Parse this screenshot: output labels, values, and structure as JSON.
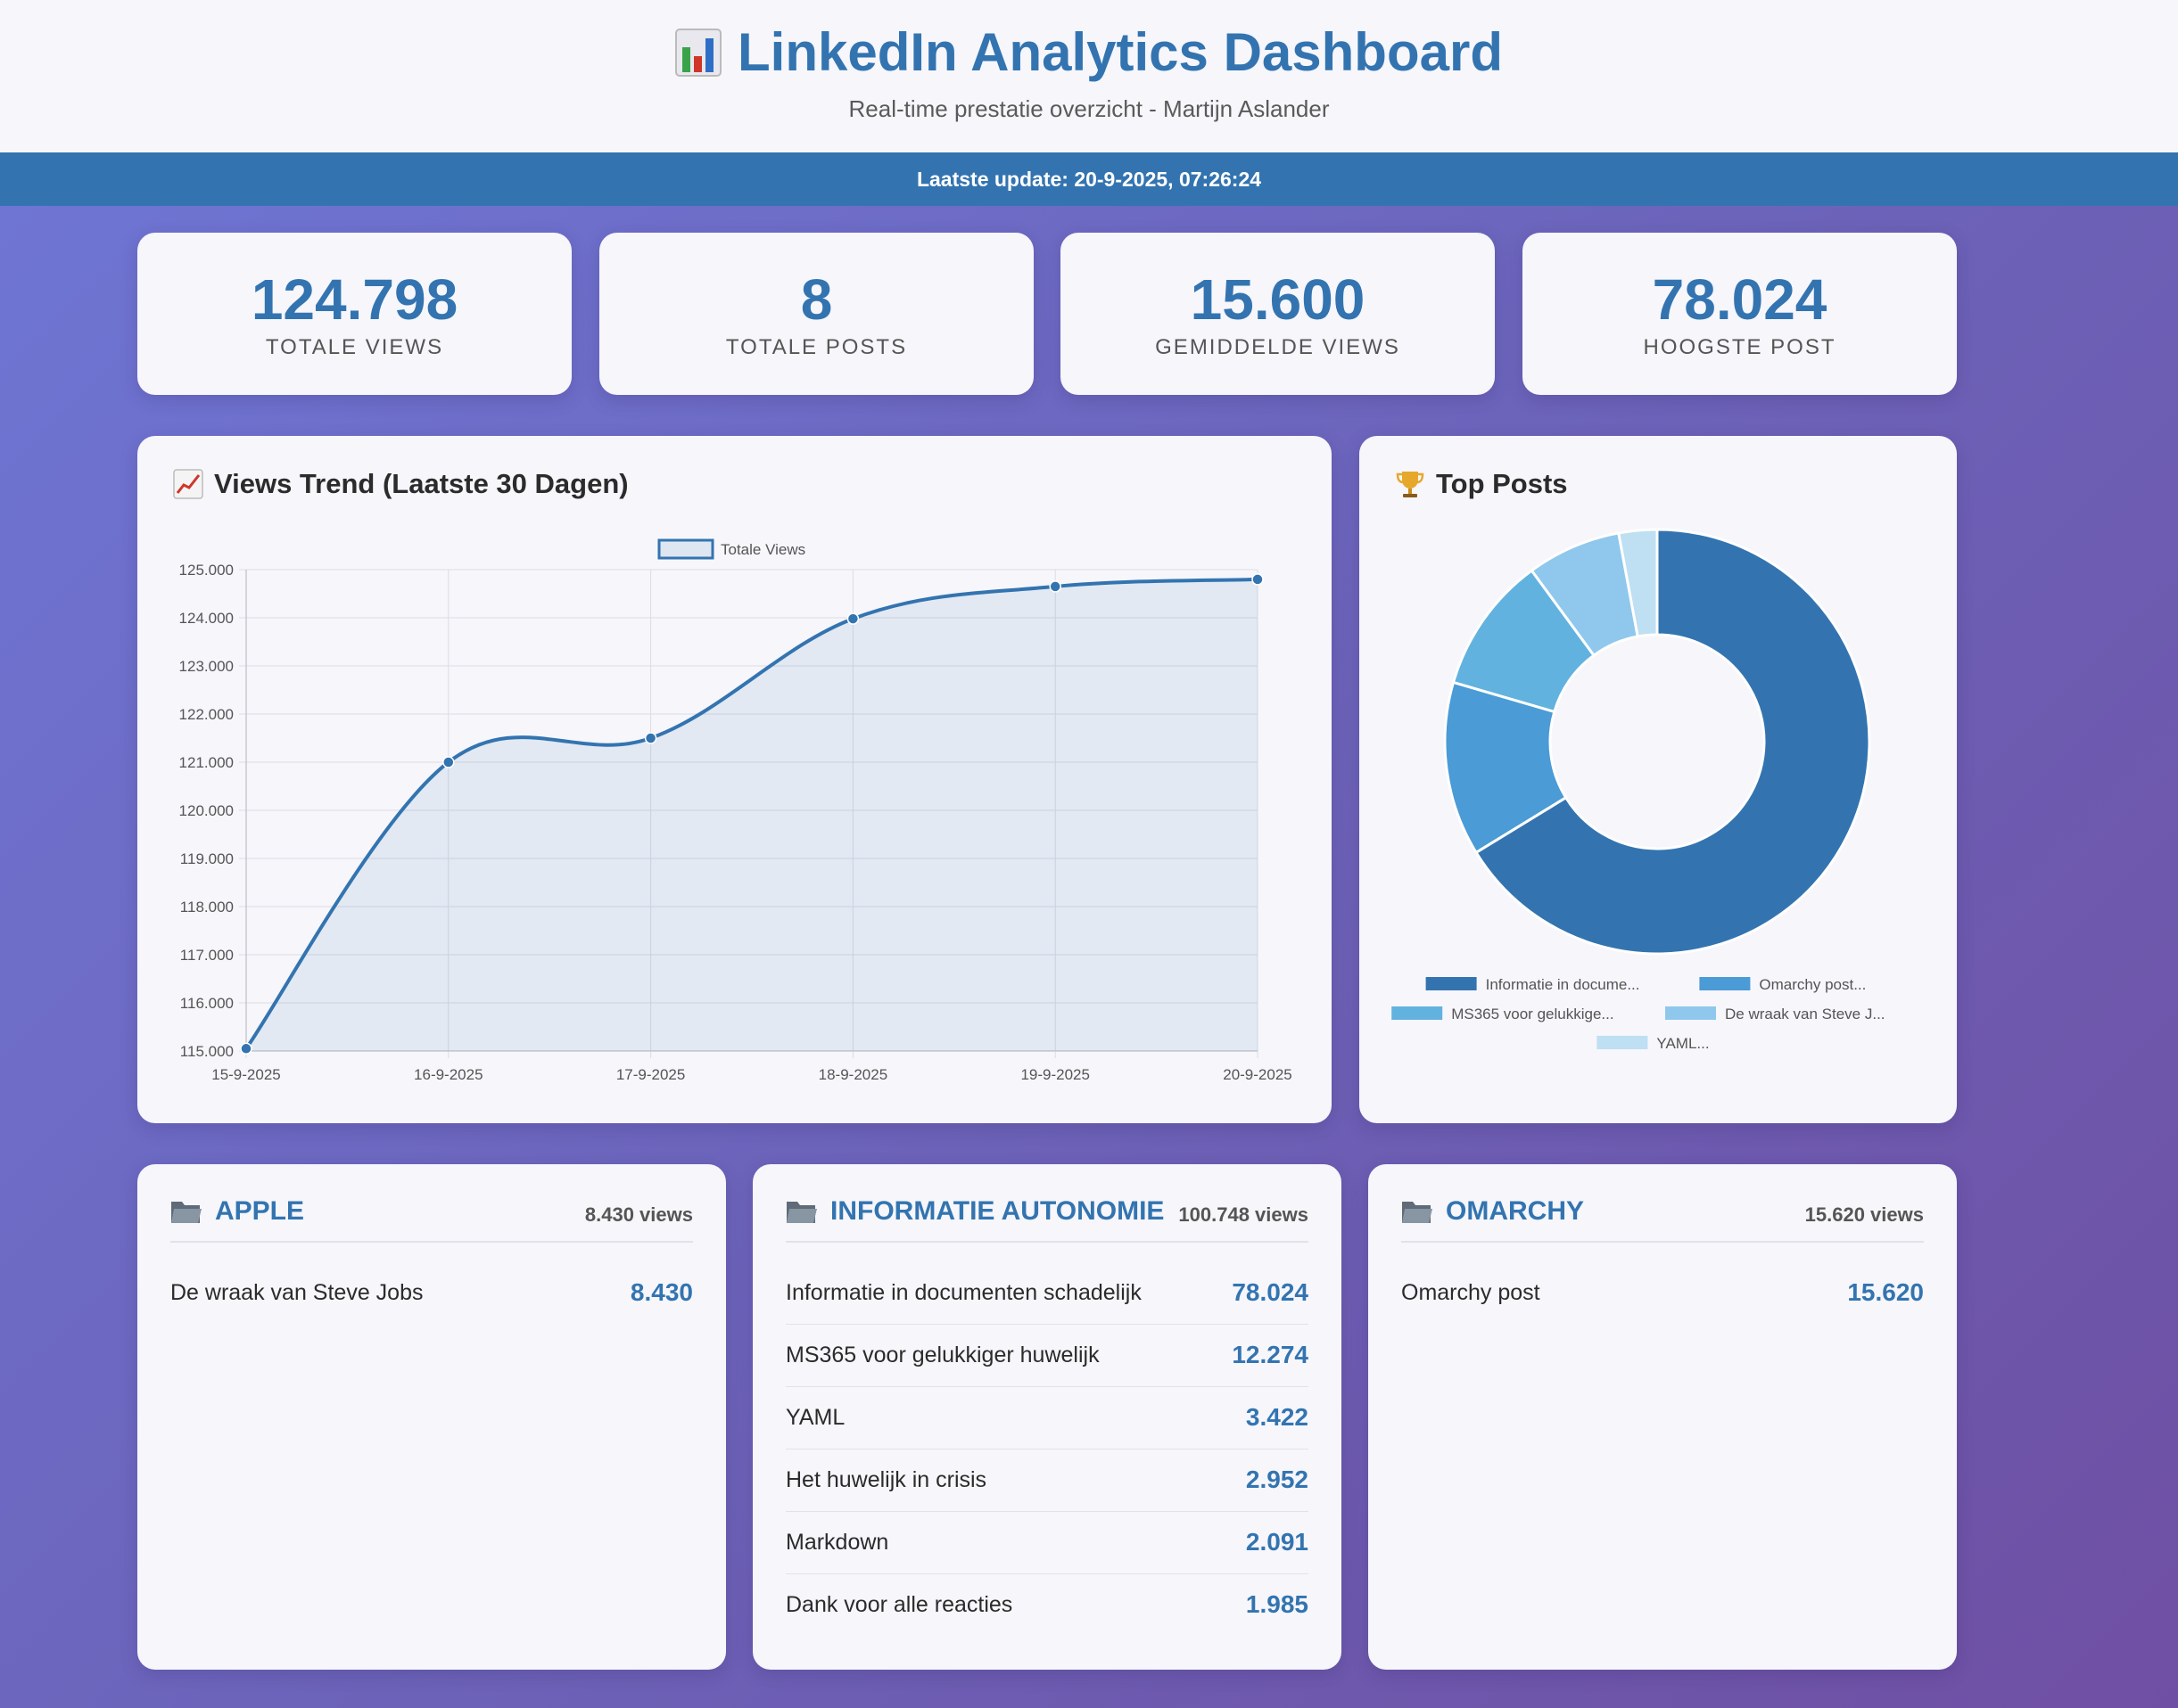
{
  "header": {
    "title": "LinkedIn Analytics Dashboard",
    "subtitle": "Real-time prestatie overzicht - Martijn Aslander"
  },
  "update": {
    "text": "Laatste update: 20-9-2025, 07:26:24"
  },
  "stats": [
    {
      "value": "124.798",
      "label": "Totale Views"
    },
    {
      "value": "8",
      "label": "Totale Posts"
    },
    {
      "value": "15.600",
      "label": "Gemiddelde Views"
    },
    {
      "value": "78.024",
      "label": "Hoogste Post"
    }
  ],
  "trend": {
    "title": "Views Trend (Laatste 30 Dagen)",
    "icon": "chart-increasing-icon"
  },
  "top_posts": {
    "title": "Top Posts",
    "icon": "trophy-icon"
  },
  "chart_data": [
    {
      "type": "area",
      "title": "Views Trend (Laatste 30 Dagen)",
      "x": [
        "15-9-2025",
        "16-9-2025",
        "17-9-2025",
        "18-9-2025",
        "19-9-2025",
        "20-9-2025"
      ],
      "series": [
        {
          "name": "Totale Views",
          "values": [
            115050,
            121000,
            121500,
            123980,
            124650,
            124798
          ]
        }
      ],
      "ylim": [
        115000,
        125000
      ],
      "yticks": [
        "125.000",
        "124.000",
        "123.000",
        "122.000",
        "121.000",
        "120.000",
        "119.000",
        "118.000",
        "117.000",
        "116.000",
        "115.000"
      ],
      "legend": "top-center",
      "grid": true,
      "color": "#3374b0"
    },
    {
      "type": "pie",
      "title": "Top Posts",
      "categories": [
        "Informatie in docume...",
        "Omarchy post...",
        "MS365 voor gelukkige...",
        "De wraak van Steve J...",
        "YAML..."
      ],
      "values": [
        78024,
        15620,
        12274,
        8430,
        3422
      ],
      "colors": [
        "#3374b0",
        "#4a9bd6",
        "#62b2e0",
        "#8fc8ec",
        "#bfdff2"
      ],
      "legend": "bottom"
    }
  ],
  "categories": [
    {
      "name": "APPLE",
      "views": "8.430 views",
      "posts": [
        {
          "title": "De wraak van Steve Jobs",
          "value": "8.430"
        }
      ]
    },
    {
      "name": "INFORMATIE AUTONOMIE",
      "views": "100.748 views",
      "posts": [
        {
          "title": "Informatie in documenten schadelijk",
          "value": "78.024"
        },
        {
          "title": "MS365 voor gelukkiger huwelijk",
          "value": "12.274"
        },
        {
          "title": "YAML",
          "value": "3.422"
        },
        {
          "title": "Het huwelijk in crisis",
          "value": "2.952"
        },
        {
          "title": "Markdown",
          "value": "2.091"
        },
        {
          "title": "Dank voor alle reacties",
          "value": "1.985"
        }
      ]
    },
    {
      "name": "OMARCHY",
      "views": "15.620 views",
      "posts": [
        {
          "title": "Omarchy post",
          "value": "15.620"
        }
      ]
    }
  ]
}
